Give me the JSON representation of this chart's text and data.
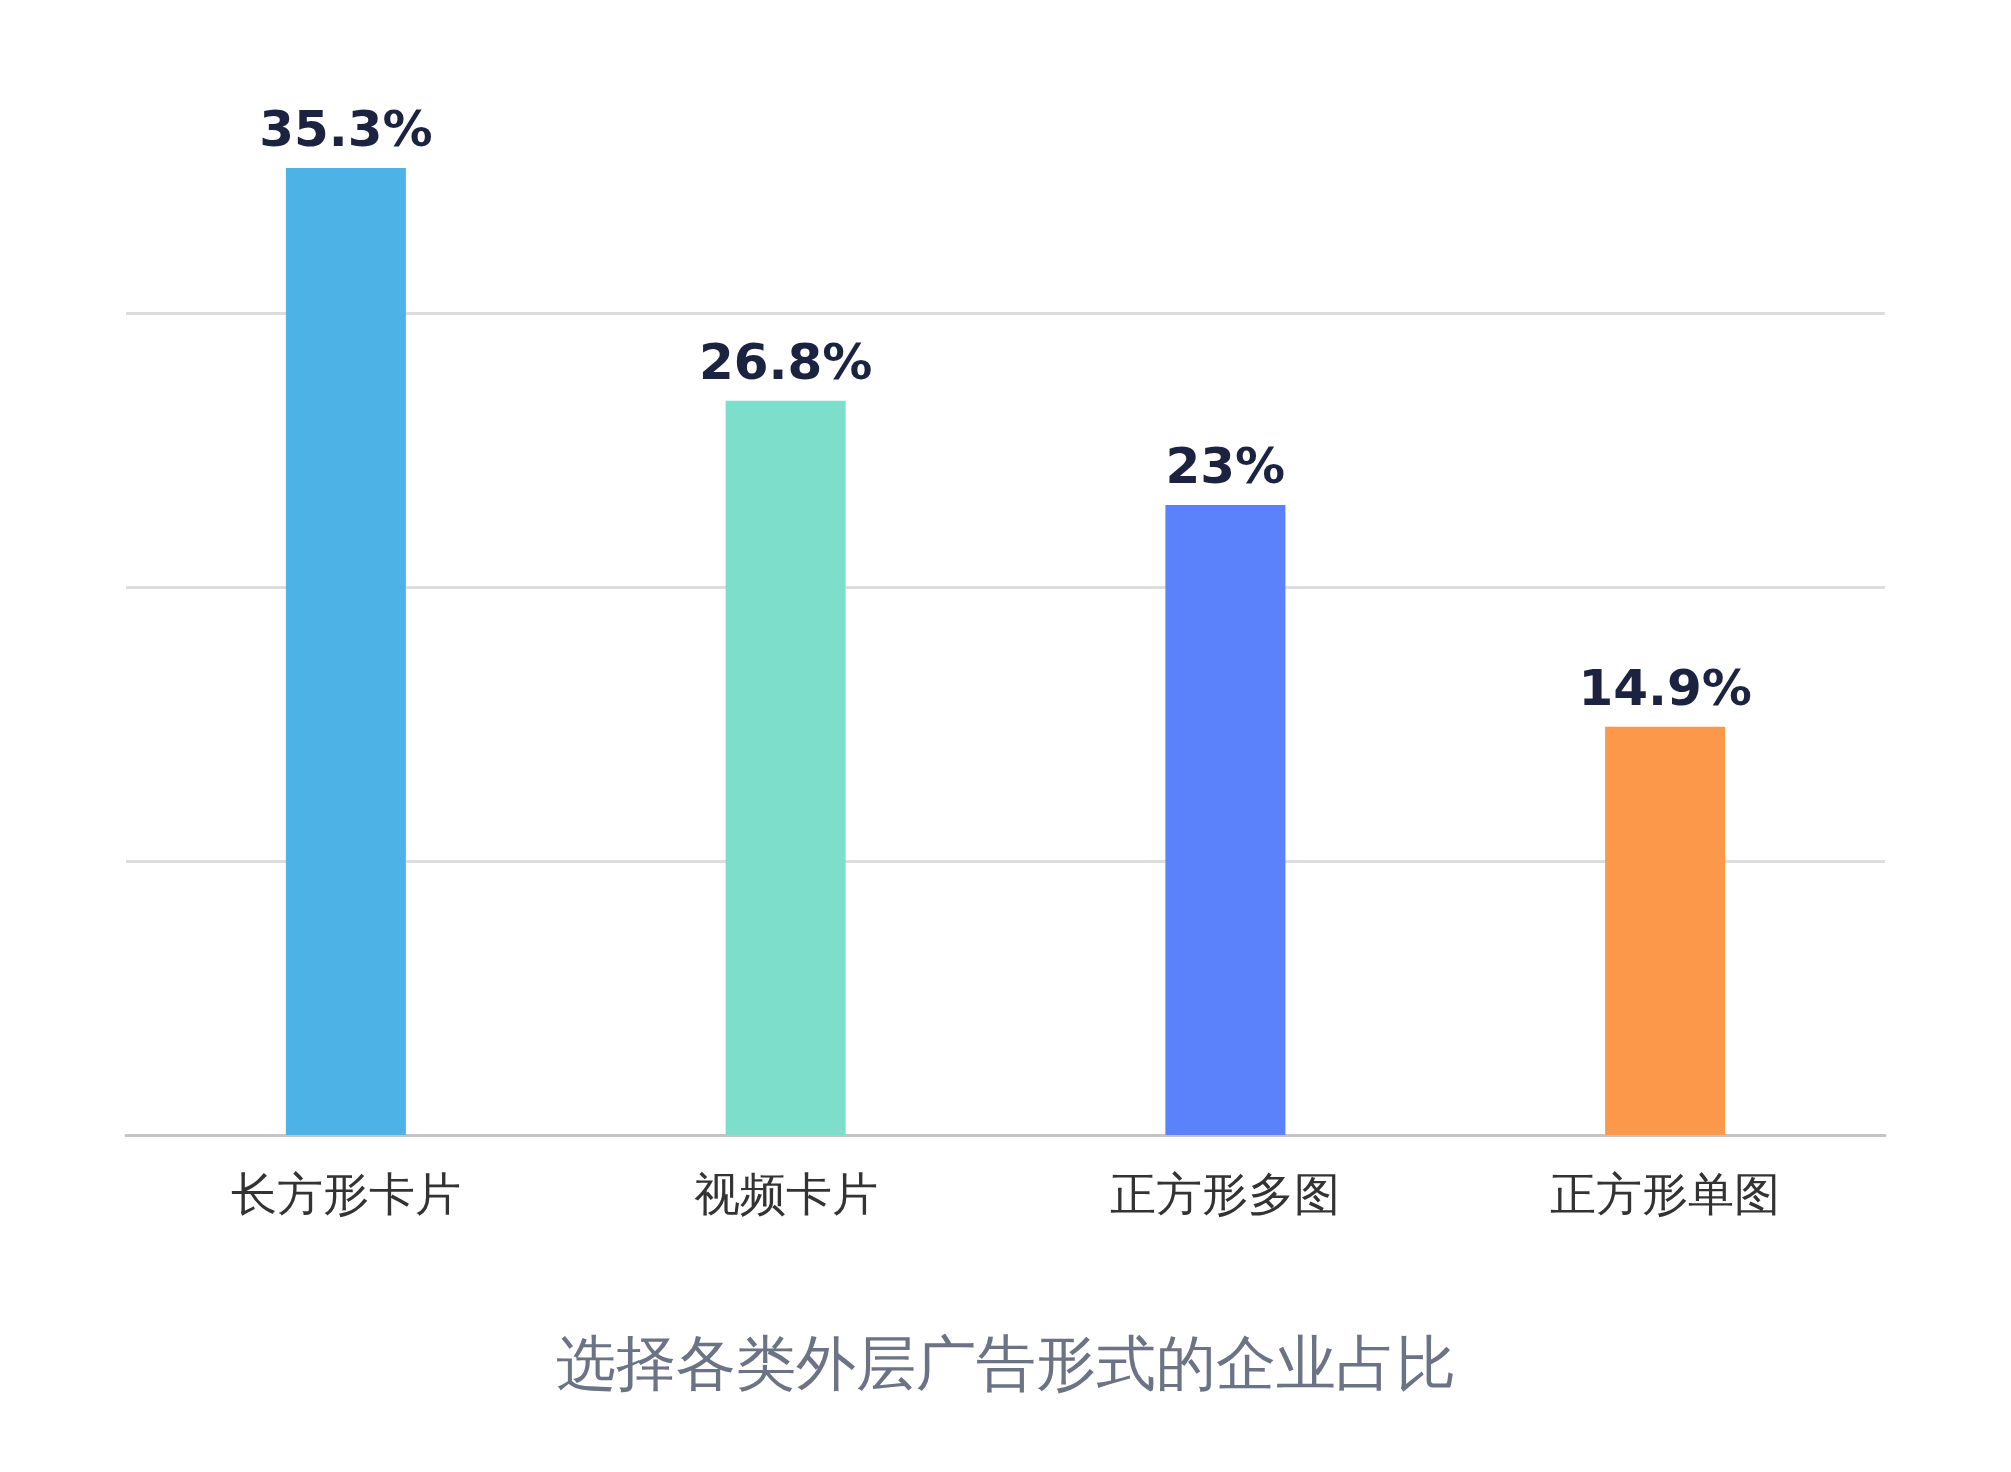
{
  "chart_data": {
    "type": "bar",
    "title": "选择各类外层广告形式的企业占比",
    "categories": [
      "长方形卡片",
      "视频卡片",
      "正方形多图",
      "正方形单图"
    ],
    "values": [
      35.3,
      26.8,
      23,
      14.9
    ],
    "value_labels": [
      "35.3%",
      "26.8%",
      "23%",
      "14.9%"
    ],
    "colors": [
      "#4db3e6",
      "#7ddecb",
      "#5b82fb",
      "#fb9849"
    ],
    "yticks": [
      {
        "value": 0,
        "label": null
      },
      {
        "value": 10,
        "label": null
      },
      {
        "value": 20,
        "label": null
      },
      {
        "value": 30,
        "label": null
      }
    ],
    "grid": "y",
    "tick_labels": "x"
  }
}
